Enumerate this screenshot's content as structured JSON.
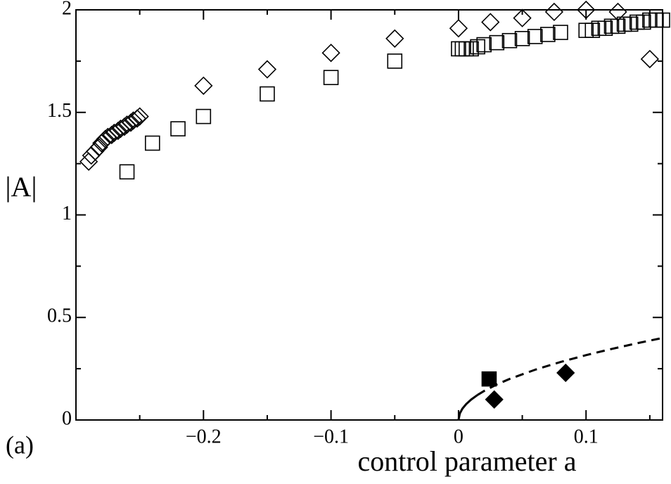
{
  "chart_data": {
    "type": "scatter",
    "xlabel": "control parameter a",
    "ylabel": "|A|",
    "annotation": "(a)",
    "xlim": [
      -0.3,
      0.16
    ],
    "ylim": [
      0,
      2
    ],
    "xticks": [
      {
        "value": -0.2,
        "label": "−0.2"
      },
      {
        "value": -0.1,
        "label": "−0.1"
      },
      0,
      0.1
    ],
    "yticks": [
      0,
      0.5,
      1,
      1.5,
      2
    ],
    "xminorticks": [
      -0.25,
      -0.15,
      -0.05,
      0.05,
      0.15
    ],
    "yminorticks": [
      0.25,
      0.75,
      1.25,
      1.75
    ],
    "series": [
      {
        "marker": "diamond",
        "filled": false,
        "color": "#000000",
        "x": [
          -0.29,
          -0.288,
          -0.285,
          -0.282,
          -0.28,
          -0.277,
          -0.275,
          -0.272,
          -0.27,
          -0.267,
          -0.265,
          -0.262,
          -0.26,
          -0.257,
          -0.255,
          -0.252,
          -0.25,
          -0.2,
          -0.15,
          -0.1,
          -0.05,
          0,
          0.025,
          0.05,
          0.075,
          0.1,
          0.125,
          0.15
        ],
        "values": [
          1.26,
          1.29,
          1.31,
          1.33,
          1.35,
          1.37,
          1.38,
          1.39,
          1.4,
          1.41,
          1.42,
          1.43,
          1.44,
          1.45,
          1.46,
          1.47,
          1.48,
          1.63,
          1.71,
          1.79,
          1.86,
          1.91,
          1.94,
          1.96,
          1.99,
          2.0,
          1.99,
          1.76
        ]
      },
      {
        "marker": "square",
        "filled": false,
        "color": "#000000",
        "x": [
          -0.26,
          -0.24,
          -0.22,
          -0.2,
          -0.15,
          -0.1,
          -0.05,
          0,
          0.003,
          0.006,
          0.01,
          0.015,
          0.02,
          0.03,
          0.04,
          0.05,
          0.06,
          0.07,
          0.08,
          0.1,
          0.105,
          0.11,
          0.115,
          0.12,
          0.125,
          0.13,
          0.135,
          0.14,
          0.145,
          0.15,
          0.155,
          0.16
        ],
        "values": [
          1.21,
          1.35,
          1.42,
          1.48,
          1.59,
          1.67,
          1.75,
          1.81,
          1.81,
          1.81,
          1.81,
          1.82,
          1.83,
          1.84,
          1.85,
          1.86,
          1.87,
          1.88,
          1.89,
          1.9,
          1.9,
          1.91,
          1.91,
          1.92,
          1.92,
          1.93,
          1.93,
          1.94,
          1.94,
          1.95,
          1.95,
          1.95
        ]
      },
      {
        "marker": "square",
        "filled": true,
        "color": "#000000",
        "x": [
          0.024
        ],
        "values": [
          0.2
        ]
      },
      {
        "marker": "diamond",
        "filled": true,
        "color": "#000000",
        "x": [
          0.028,
          0.084
        ],
        "values": [
          0.1,
          0.23
        ]
      },
      {
        "marker": "line",
        "dash": false,
        "color": "#000000",
        "x": [
          0,
          0.001,
          0.003,
          0.006,
          0.01,
          0.015
        ],
        "values": [
          0,
          0.0316,
          0.0548,
          0.0775,
          0.1,
          0.1225
        ]
      },
      {
        "marker": "line",
        "dash": true,
        "color": "#000000",
        "x": [
          0.015,
          0.02,
          0.03,
          0.04,
          0.06,
          0.08,
          0.1,
          0.12,
          0.14,
          0.16
        ],
        "values": [
          0.1225,
          0.1414,
          0.1732,
          0.2,
          0.2449,
          0.2828,
          0.3162,
          0.3464,
          0.3742,
          0.4
        ]
      }
    ]
  }
}
